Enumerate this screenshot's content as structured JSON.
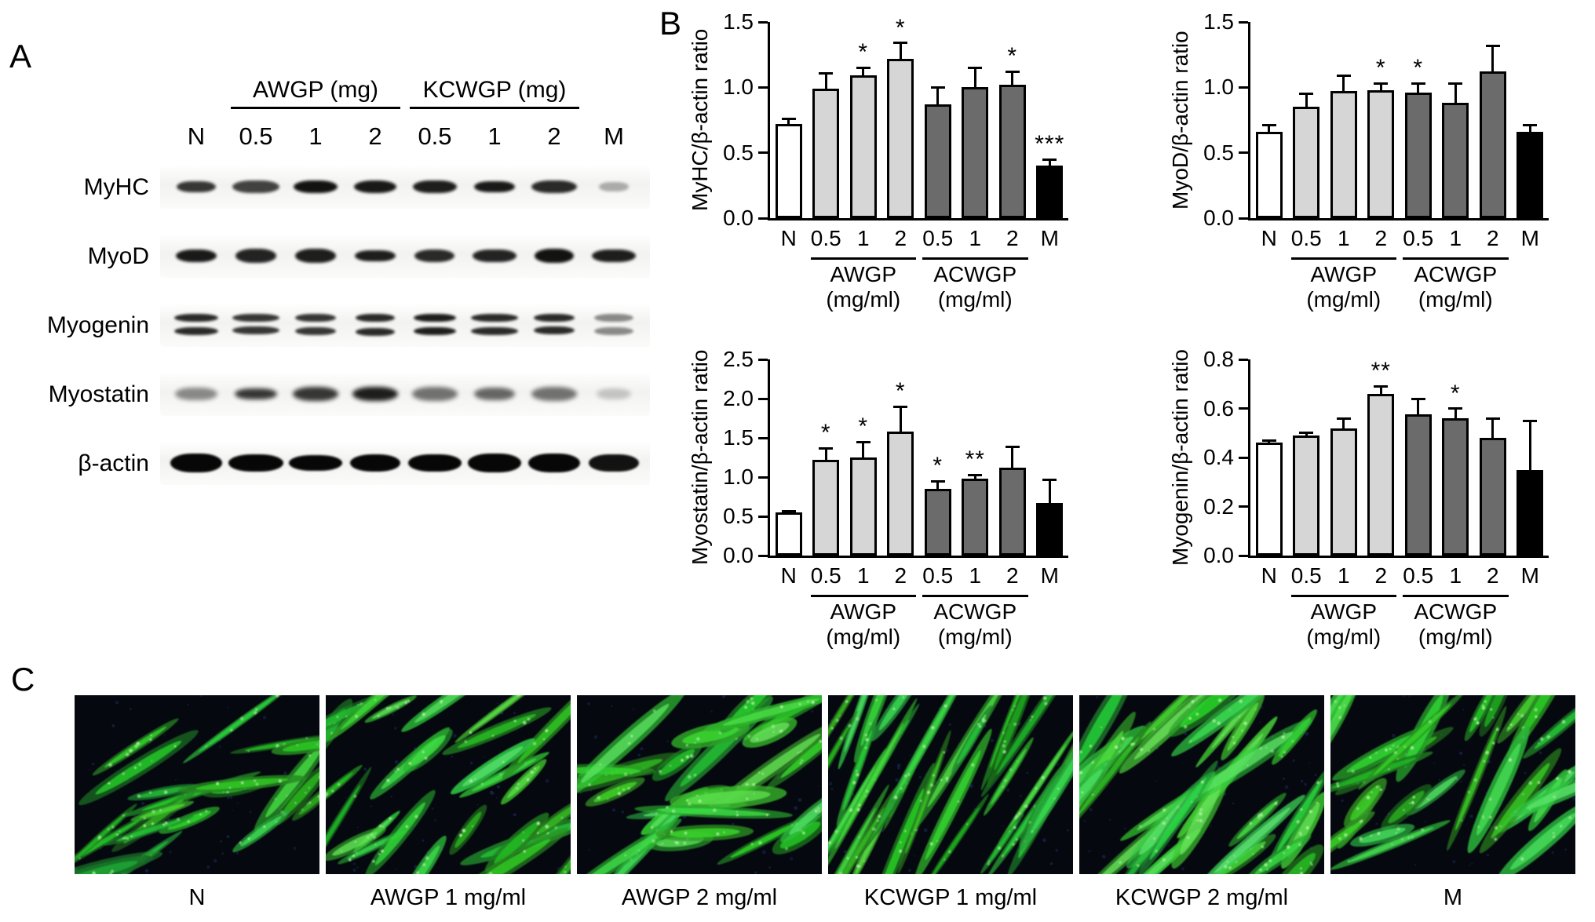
{
  "panel_a": {
    "label": "A",
    "group_headers": [
      {
        "text": "AWGP (mg)",
        "from": 1,
        "to": 3
      },
      {
        "text": "KCWGP (mg)",
        "from": 4,
        "to": 6
      }
    ],
    "lane_labels": [
      "N",
      "0.5",
      "1",
      "2",
      "0.5",
      "1",
      "2",
      "M"
    ],
    "rows": [
      {
        "label": "MyHC",
        "style": "single",
        "intensities": [
          0.8,
          0.75,
          0.95,
          0.92,
          0.9,
          0.92,
          0.85,
          0.3
        ]
      },
      {
        "label": "MyoD",
        "style": "single",
        "intensities": [
          0.92,
          0.88,
          0.9,
          0.9,
          0.85,
          0.88,
          0.95,
          0.9
        ]
      },
      {
        "label": "Myogenin",
        "style": "double",
        "intensities": [
          0.85,
          0.8,
          0.8,
          0.85,
          0.9,
          0.85,
          0.85,
          0.45
        ]
      },
      {
        "label": "Myostatin",
        "style": "fuzzy",
        "intensities": [
          0.45,
          0.8,
          0.8,
          0.9,
          0.55,
          0.6,
          0.55,
          0.2
        ]
      },
      {
        "label": "β-actin",
        "style": "thick",
        "intensities": [
          1,
          1,
          1,
          1,
          1,
          1,
          1,
          0.95
        ]
      }
    ]
  },
  "panel_b": {
    "label": "B"
  },
  "panel_c": {
    "label": "C",
    "image_labels": [
      "N",
      "AWGP 1 mg/ml",
      "AWGP 2 mg/ml",
      "KCWGP 1 mg/ml",
      "KCWGP 2 mg/ml",
      "M"
    ],
    "cell_color": "#3ecf3e"
  },
  "colors": {
    "bar_n": "#ffffff",
    "bar_awgp": "#d6d6d6",
    "bar_acwgp": "#6b6b6b",
    "bar_m": "#000000",
    "axis": "#000000"
  },
  "chart_data": [
    {
      "type": "bar",
      "ylabel": "MyHC/β-actin ratio",
      "categories": [
        "N",
        "0.5",
        "1",
        "2",
        "0.5",
        "1",
        "2",
        "M"
      ],
      "values": [
        0.72,
        0.99,
        1.09,
        1.22,
        0.87,
        1.0,
        1.02,
        0.4
      ],
      "errors": [
        0.04,
        0.12,
        0.06,
        0.12,
        0.13,
        0.15,
        0.1,
        0.05
      ],
      "significance": [
        "",
        "",
        "*",
        "*",
        "",
        "",
        "*",
        "***"
      ],
      "ylim": [
        0,
        1.5
      ],
      "yticks": [
        "0.0",
        "0.5",
        "1.0",
        "1.5"
      ],
      "groups": [
        {
          "text": "AWGP",
          "sub": "(mg/ml)",
          "from": 1,
          "to": 3
        },
        {
          "text": "ACWGP",
          "sub": "(mg/ml)",
          "from": 4,
          "to": 6
        }
      ],
      "colors": [
        "#ffffff",
        "#d6d6d6",
        "#d6d6d6",
        "#d6d6d6",
        "#6b6b6b",
        "#6b6b6b",
        "#6b6b6b",
        "#000000"
      ]
    },
    {
      "type": "bar",
      "ylabel": "MyoD/β-actin ratio",
      "categories": [
        "N",
        "0.5",
        "1",
        "2",
        "0.5",
        "1",
        "2",
        "M"
      ],
      "values": [
        0.66,
        0.85,
        0.97,
        0.98,
        0.96,
        0.88,
        1.12,
        0.66
      ],
      "errors": [
        0.05,
        0.1,
        0.12,
        0.05,
        0.07,
        0.15,
        0.2,
        0.05
      ],
      "significance": [
        "",
        "",
        "",
        "*",
        "*",
        "",
        "",
        ""
      ],
      "ylim": [
        0,
        1.5
      ],
      "yticks": [
        "0.0",
        "0.5",
        "1.0",
        "1.5"
      ],
      "groups": [
        {
          "text": "AWGP",
          "sub": "(mg/ml)",
          "from": 1,
          "to": 3
        },
        {
          "text": "ACWGP",
          "sub": "(mg/ml)",
          "from": 4,
          "to": 6
        }
      ],
      "colors": [
        "#ffffff",
        "#d6d6d6",
        "#d6d6d6",
        "#d6d6d6",
        "#6b6b6b",
        "#6b6b6b",
        "#6b6b6b",
        "#000000"
      ]
    },
    {
      "type": "bar",
      "ylabel": "Myostatin/β-actin ratio",
      "categories": [
        "N",
        "0.5",
        "1",
        "2",
        "0.5",
        "1",
        "2",
        "M"
      ],
      "values": [
        0.55,
        1.22,
        1.25,
        1.58,
        0.85,
        0.98,
        1.12,
        0.67
      ],
      "errors": [
        0.02,
        0.15,
        0.2,
        0.32,
        0.1,
        0.05,
        0.27,
        0.3
      ],
      "significance": [
        "",
        "*",
        "*",
        "*",
        "*",
        "**",
        "",
        ""
      ],
      "ylim": [
        0,
        2.5
      ],
      "yticks": [
        "0.0",
        "0.5",
        "1.0",
        "1.5",
        "2.0",
        "2.5"
      ],
      "groups": [
        {
          "text": "AWGP",
          "sub": "(mg/ml)",
          "from": 1,
          "to": 3
        },
        {
          "text": "ACWGP",
          "sub": "(mg/ml)",
          "from": 4,
          "to": 6
        }
      ],
      "colors": [
        "#ffffff",
        "#d6d6d6",
        "#d6d6d6",
        "#d6d6d6",
        "#6b6b6b",
        "#6b6b6b",
        "#6b6b6b",
        "#000000"
      ]
    },
    {
      "type": "bar",
      "ylabel": "Myogenin/β-actin ratio",
      "categories": [
        "N",
        "0.5",
        "1",
        "2",
        "0.5",
        "1",
        "2",
        "M"
      ],
      "values": [
        0.46,
        0.49,
        0.52,
        0.66,
        0.575,
        0.56,
        0.48,
        0.35
      ],
      "errors": [
        0.01,
        0.01,
        0.04,
        0.03,
        0.065,
        0.04,
        0.08,
        0.2
      ],
      "significance": [
        "",
        "",
        "",
        "**",
        "",
        "*",
        "",
        ""
      ],
      "ylim": [
        0,
        0.8
      ],
      "yticks": [
        "0.0",
        "0.2",
        "0.4",
        "0.6",
        "0.8"
      ],
      "groups": [
        {
          "text": "AWGP",
          "sub": "(mg/ml)",
          "from": 1,
          "to": 3
        },
        {
          "text": "ACWGP",
          "sub": "(mg/ml)",
          "from": 4,
          "to": 6
        }
      ],
      "colors": [
        "#ffffff",
        "#d6d6d6",
        "#d6d6d6",
        "#d6d6d6",
        "#6b6b6b",
        "#6b6b6b",
        "#6b6b6b",
        "#000000"
      ]
    }
  ]
}
